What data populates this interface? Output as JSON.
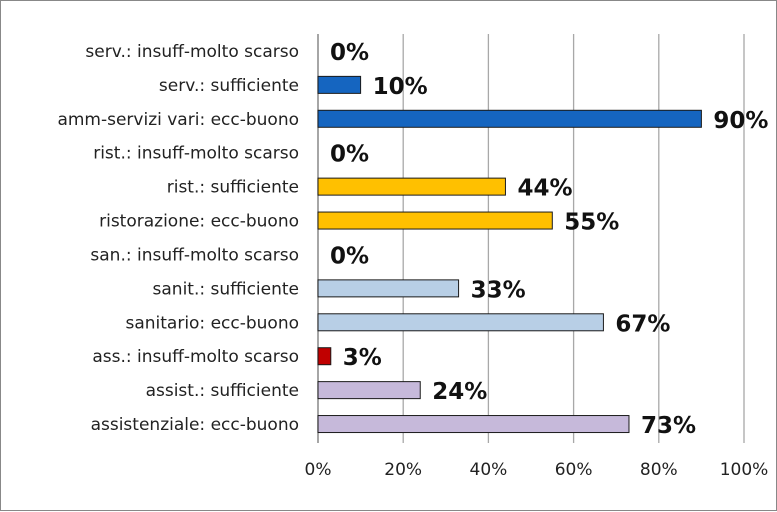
{
  "chart_data": {
    "type": "bar",
    "orientation": "horizontal",
    "title": "",
    "xlabel": "",
    "ylabel": "",
    "xlim": [
      0,
      100
    ],
    "grid": true,
    "legend": "none",
    "x_ticks": [
      "0%",
      "20%",
      "40%",
      "60%",
      "80%",
      "100%"
    ],
    "categories": [
      "serv.: insuff-molto scarso",
      "serv.: sufficiente",
      "amm-servizi vari: ecc-buono",
      "rist.: insuff-molto scarso",
      "rist.: sufficiente",
      "ristorazione: ecc-buono",
      "san.: insuff-molto scarso",
      "sanit.: sufficiente",
      "sanitario: ecc-buono",
      "ass.: insuff-molto scarso",
      "assist.: sufficiente",
      "assistenziale: ecc-buono"
    ],
    "values": [
      0,
      10,
      90,
      0,
      44,
      55,
      0,
      33,
      67,
      3,
      24,
      73
    ],
    "value_labels": [
      "0%",
      "10%",
      "90%",
      "0%",
      "44%",
      "55%",
      "0%",
      "33%",
      "67%",
      "3%",
      "24%",
      "73%"
    ],
    "colors": [
      "#1565c0",
      "#1565c0",
      "#1565c0",
      "#ffc000",
      "#ffc000",
      "#ffc000",
      "#b8cfe6",
      "#b8cfe6",
      "#b8cfe6",
      "#c00000",
      "#c6b9da",
      "#c6b9da"
    ]
  }
}
